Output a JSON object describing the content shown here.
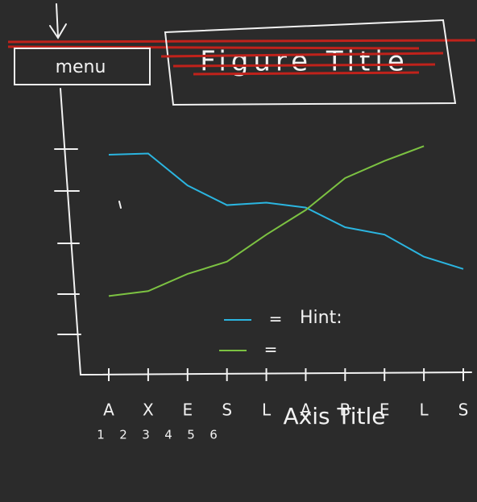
{
  "menu": "menu",
  "chart_data": {
    "type": "line",
    "title": "Figure Title",
    "categories": [
      "A",
      "X",
      "E",
      "S",
      "L",
      "A",
      "B",
      "E",
      "L",
      "S"
    ],
    "x_sublabels": [
      "1",
      "2",
      "3",
      "4",
      "5",
      "6"
    ],
    "x_axis_label": "Axis Title",
    "ylim": [
      0,
      100
    ],
    "series": [
      {
        "name": "Hint:",
        "color": "#2bb5e0",
        "values": [
          89.5,
          90,
          77,
          69,
          70,
          68,
          60,
          57,
          48,
          43
        ]
      },
      {
        "color": "#7cc242",
        "values": [
          32,
          34,
          41,
          46,
          57,
          67,
          80,
          87,
          93,
          null
        ]
      }
    ]
  }
}
